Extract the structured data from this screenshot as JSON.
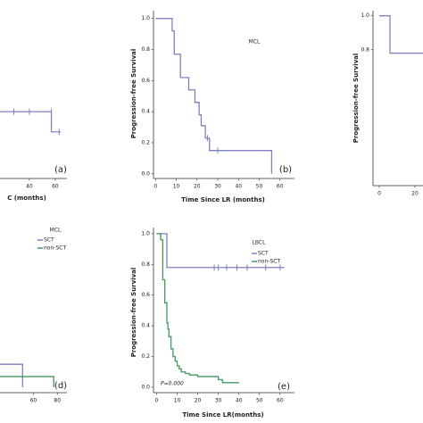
{
  "chart_data": [
    {
      "type": "step",
      "panel_label": "(a)",
      "xlabel": "C (months)",
      "xlim": [
        7,
        69
      ],
      "ylim": [
        -0.03,
        1.05
      ],
      "xticks": [
        40,
        60
      ],
      "series": [
        {
          "color": "#7f80c2",
          "x": [
            7,
            57,
            64
          ],
          "values": [
            0.4,
            0.27,
            0.27
          ],
          "censor_x": [
            28,
            40,
            57,
            63
          ],
          "censor_values": [
            0.4,
            0.4,
            0.4,
            0.27
          ]
        }
      ]
    },
    {
      "type": "step",
      "title": "MCL",
      "panel_label": "(b)",
      "xlabel": "Time Since LR (months)",
      "ylabel": "Progression-free Survival",
      "xlim": [
        -1,
        67
      ],
      "ylim": [
        -0.03,
        1.05
      ],
      "xticks": [
        0,
        10,
        20,
        30,
        40,
        50,
        60
      ],
      "yticks": [
        {
          "value": 0,
          "label": "0.0"
        },
        0.2,
        0.4,
        0.6,
        0.8,
        {
          "value": 1,
          "label": "1.0"
        }
      ],
      "series": [
        {
          "color": "#7f80c2",
          "x": [
            0,
            8,
            9,
            12,
            16,
            19,
            21,
            22,
            24,
            26,
            56
          ],
          "values": [
            1,
            0.92,
            0.77,
            0.62,
            0.54,
            0.46,
            0.38,
            0.31,
            0.23,
            0.15,
            0
          ],
          "censor_x": [
            25,
            30
          ],
          "censor_values": [
            0.23,
            0.15
          ]
        }
      ]
    },
    {
      "type": "step",
      "ylabel": "Progression-free Survival",
      "xlim": [
        -3.5,
        37.5
      ],
      "ylim": [
        0,
        1.03
      ],
      "xticks": [
        0,
        20
      ],
      "yticks": [
        {
          "value": 0.8,
          "label": "0.8"
        },
        {
          "value": 1,
          "label": "1.0"
        }
      ],
      "series": [
        {
          "color": "#7f80c2",
          "x": [
            0,
            6,
            37
          ],
          "values": [
            1,
            0.78,
            0.78
          ],
          "censor_x": [],
          "censor_values": []
        }
      ]
    },
    {
      "type": "step",
      "title": "MCL",
      "panel_label": "(d)",
      "legend": true,
      "xlim": [
        21,
        88
      ],
      "ylim": [
        -0.035,
        1.04
      ],
      "xticks": [
        60,
        80
      ],
      "series": [
        {
          "name": "SCT",
          "color": "#7f80c2",
          "x": [
            21,
            51
          ],
          "values": [
            0.15,
            0
          ],
          "censor_x": [],
          "censor_values": []
        },
        {
          "name": "non-SCT",
          "color": "#3f9a5c",
          "x": [
            21,
            77
          ],
          "values": [
            0.07,
            0
          ],
          "censor_x": [],
          "censor_values": []
        }
      ]
    },
    {
      "type": "step",
      "title": "LBCL",
      "panel_label": "(e)",
      "legend": true,
      "annotation": "P=0.000",
      "xlabel": "Time Since LR(months)",
      "ylabel": "Progression-free Survival",
      "xlim": [
        -1.5,
        67
      ],
      "ylim": [
        -0.035,
        1.04
      ],
      "xticks": [
        0,
        10,
        20,
        30,
        40,
        50,
        60
      ],
      "yticks": [
        {
          "value": 0,
          "label": "0.0"
        },
        0.2,
        0.4,
        0.6,
        0.8,
        {
          "value": 1,
          "label": "1.0"
        }
      ],
      "series": [
        {
          "name": "SCT",
          "color": "#7f80c2",
          "x": [
            0,
            5,
            62
          ],
          "values": [
            1,
            0.78,
            0.78
          ],
          "censor_x": [
            28,
            30,
            34,
            39,
            44,
            53,
            60
          ],
          "censor_values": [
            0.78,
            0.78,
            0.78,
            0.78,
            0.78,
            0.78,
            0.78
          ]
        },
        {
          "name": "non-SCT",
          "color": "#3f9a5c",
          "x": [
            0,
            2,
            3,
            4,
            5,
            5.5,
            6,
            7,
            8,
            9,
            10,
            11,
            12,
            14,
            16,
            20,
            30,
            32,
            40
          ],
          "values": [
            1,
            0.96,
            0.7,
            0.55,
            0.42,
            0.38,
            0.33,
            0.25,
            0.2,
            0.17,
            0.14,
            0.12,
            0.1,
            0.09,
            0.08,
            0.07,
            0.05,
            0.03,
            0.03
          ],
          "censor_x": [],
          "censor_values": []
        }
      ]
    }
  ]
}
